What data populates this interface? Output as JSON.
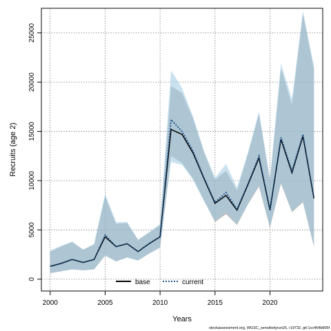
{
  "chart_data": {
    "type": "line",
    "xlabel": "Years",
    "ylabel": "Recruits (age 2)",
    "xlim": [
      1999.2,
      2024.8
    ],
    "ylim": [
      -1200,
      27500
    ],
    "x_ticks": [
      2000,
      2005,
      2010,
      2015,
      2020
    ],
    "y_ticks": [
      0,
      5000,
      10000,
      15000,
      20000,
      25000
    ],
    "grid": true,
    "legend_position": "bottom-center",
    "x": [
      2000,
      2001,
      2002,
      2003,
      2004,
      2005,
      2006,
      2007,
      2008,
      2009,
      2010,
      2011,
      2012,
      2013,
      2014,
      2015,
      2016,
      2017,
      2018,
      2019,
      2020,
      2021,
      2022,
      2023,
      2024
    ],
    "series": [
      {
        "name": "base",
        "color": "#000000",
        "line_style": "solid",
        "band_color": "#8c8c8c",
        "values": [
          1300,
          1600,
          2000,
          1700,
          2000,
          4300,
          3300,
          3600,
          2800,
          3600,
          4300,
          15200,
          14700,
          12800,
          10200,
          7700,
          8500,
          7000,
          9600,
          12300,
          7000,
          14200,
          10800,
          14500,
          8200
        ],
        "lower": [
          600,
          800,
          1000,
          900,
          1000,
          2400,
          1800,
          2200,
          1900,
          2600,
          3200,
          12500,
          11800,
          10200,
          8000,
          5800,
          6600,
          5500,
          7600,
          9400,
          5200,
          9700,
          6800,
          7800,
          3300
        ],
        "upper": [
          2800,
          3300,
          3800,
          3000,
          3500,
          8400,
          5600,
          5700,
          4000,
          4700,
          5500,
          19600,
          18900,
          16300,
          12900,
          10100,
          11000,
          9000,
          12700,
          16800,
          10000,
          21400,
          17700,
          27000,
          21300
        ]
      },
      {
        "name": "current",
        "color": "#1b4f8a",
        "line_style": "dotted",
        "band_color": "#9ecae1",
        "values": [
          1300,
          1600,
          2000,
          1700,
          2000,
          4500,
          3300,
          3600,
          2800,
          3600,
          4300,
          16200,
          15000,
          13000,
          10300,
          7800,
          8800,
          7100,
          9700,
          12500,
          7100,
          14400,
          11000,
          14700,
          8300
        ],
        "lower": [
          600,
          800,
          1000,
          900,
          1000,
          2400,
          1800,
          2200,
          1900,
          2600,
          3200,
          11900,
          11600,
          10100,
          7900,
          5900,
          6800,
          5600,
          7700,
          9500,
          5300,
          9800,
          6900,
          7900,
          3300
        ],
        "upper": [
          2900,
          3400,
          3800,
          3000,
          3600,
          8700,
          5800,
          5800,
          4000,
          4800,
          5600,
          21200,
          19400,
          16500,
          13000,
          10300,
          11700,
          9300,
          12900,
          17000,
          10200,
          21900,
          18300,
          27200,
          21600
        ]
      }
    ],
    "footnote": "stockassessment.org, WGSC_sensitivityrun26, r19732, git:1cc464b806f"
  }
}
